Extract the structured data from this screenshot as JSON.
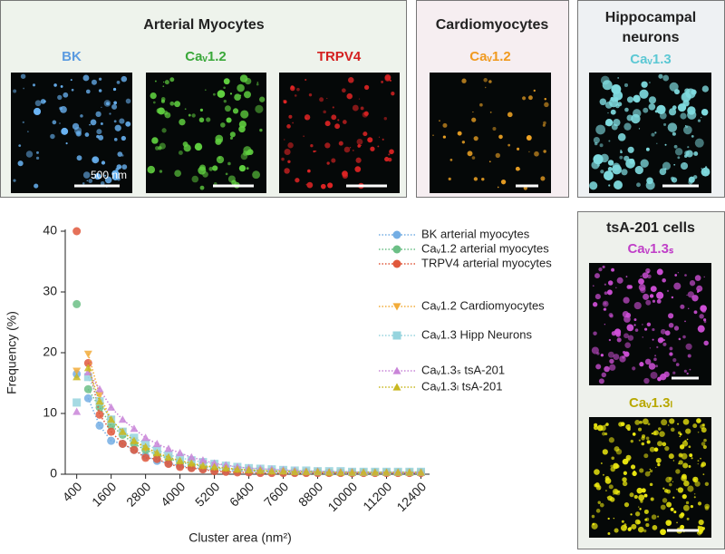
{
  "panels": {
    "arterial": {
      "title": "Arterial Myocytes",
      "labels": [
        "BK",
        "Caᵥ1.2",
        "TRPV4"
      ],
      "scale": "500 nm"
    },
    "cardio": {
      "title": "Cardiomyocytes",
      "label": "Caᵥ1.2"
    },
    "hippo": {
      "title": [
        "Hippocampal",
        "neurons"
      ],
      "label": "Caᵥ1.3"
    },
    "tsa": {
      "title": "tsA-201 cells",
      "labels": [
        "Caᵥ1.3ₛ",
        "Caᵥ1.3ₗ"
      ]
    }
  },
  "chart_data": {
    "type": "scatter",
    "xlabel": "Cluster area (nm²)",
    "ylabel": "Frequency (%)",
    "x": [
      400,
      800,
      1200,
      1600,
      2000,
      2400,
      2800,
      3200,
      3600,
      4000,
      4400,
      4800,
      5200,
      5600,
      6000,
      6400,
      6800,
      7200,
      7600,
      8000,
      8400,
      8800,
      9200,
      9600,
      10000,
      10400,
      10800,
      11200,
      11600,
      12000,
      12400
    ],
    "xlim": [
      0,
      12700
    ],
    "xticks": [
      400,
      1600,
      2800,
      4000,
      5200,
      6400,
      7600,
      8800,
      10000,
      11200,
      12400
    ],
    "ylim": [
      0,
      40
    ],
    "yticks": [
      0,
      10,
      20,
      30,
      40
    ],
    "series": [
      {
        "name": "BK arterial myocytes",
        "color": "#74aee4",
        "marker": "circle",
        "values": [
          16.5,
          12.5,
          8,
          5.5,
          5,
          4,
          3,
          2.2,
          1.8,
          1.4,
          1.1,
          0.9,
          0.7,
          0.6,
          0.5,
          0.5,
          0.4,
          0.4,
          0.3,
          0.3,
          0.3,
          0.3,
          0.3,
          0.3,
          0.3,
          0.3,
          0.3,
          0.3,
          0.3,
          0.3,
          0.3
        ]
      },
      {
        "name": "Caᵥ1.2 arterial myocytes",
        "color": "#6cbf86",
        "marker": "circle",
        "values": [
          28,
          14,
          11,
          8,
          6.5,
          5,
          4,
          3.2,
          2.6,
          2,
          1.6,
          1.3,
          1,
          0.9,
          0.8,
          0.7,
          0.6,
          0.5,
          0.5,
          0.4,
          0.4,
          0.4,
          0.3,
          0.3,
          0.3,
          0.3,
          0.3,
          0.3,
          0.3,
          0.3,
          0.3
        ]
      },
      {
        "name": "TRPV4 arterial myocytes",
        "color": "#e0583c",
        "marker": "circle",
        "values": [
          40,
          18.3,
          9.8,
          7,
          5,
          4,
          2.7,
          2.5,
          1.7,
          1.2,
          1,
          0.8,
          0.5,
          0.4,
          0.3,
          0.3,
          0.2,
          0.2,
          0.2,
          0.2,
          0.2,
          0.2,
          0.2,
          0.2,
          0.2,
          0.2,
          0.2,
          0.2,
          0.2,
          0.2,
          0.2
        ]
      },
      {
        "name": "Caᵥ1.2 Cardiomyocytes",
        "color": "#f2ac3a",
        "marker": "tri-down",
        "values": [
          17,
          19.8,
          13,
          9,
          7,
          5.5,
          4.3,
          3.5,
          2.8,
          2.2,
          1.8,
          1.4,
          1.2,
          1,
          0.8,
          0.7,
          0.6,
          0.5,
          0.5,
          0.4,
          0.4,
          0.4,
          0.3,
          0.3,
          0.3,
          0.3,
          0.3,
          0.3,
          0.3,
          0.3,
          0.3
        ]
      },
      {
        "name": "Caᵥ1.3 Hipp Neurons",
        "color": "#96d4de",
        "marker": "square",
        "values": [
          11.8,
          16,
          12,
          9,
          7,
          6,
          5,
          4,
          3.2,
          2.7,
          2.3,
          2,
          1.7,
          1.4,
          1.2,
          1,
          0.9,
          0.8,
          0.7,
          0.6,
          0.6,
          0.5,
          0.5,
          0.5,
          0.4,
          0.4,
          0.4,
          0.4,
          0.4,
          0.4,
          0.4
        ]
      },
      {
        "name": "Caᵥ1.3ₛ tsA-201",
        "color": "#c985d8",
        "marker": "tri-up",
        "values": [
          10.3,
          16.8,
          14,
          11,
          9,
          7.5,
          6,
          5,
          4.2,
          3.5,
          2.8,
          2.3,
          1.8,
          1.5,
          1.2,
          1,
          0.9,
          0.8,
          0.7,
          0.6,
          0.5,
          0.5,
          0.4,
          0.4,
          0.4,
          0.3,
          0.3,
          0.3,
          0.3,
          0.3,
          0.3
        ]
      },
      {
        "name": "Caᵥ1.3ₗ tsA-201",
        "color": "#c9b820",
        "marker": "tri-up",
        "values": [
          16,
          17.5,
          12,
          9,
          7,
          5.5,
          4.5,
          3.5,
          2.8,
          2.2,
          1.8,
          1.4,
          1.2,
          1,
          0.8,
          0.7,
          0.6,
          0.5,
          0.5,
          0.4,
          0.4,
          0.4,
          0.3,
          0.3,
          0.3,
          0.3,
          0.3,
          0.3,
          0.3,
          0.3,
          0.3
        ]
      }
    ]
  }
}
